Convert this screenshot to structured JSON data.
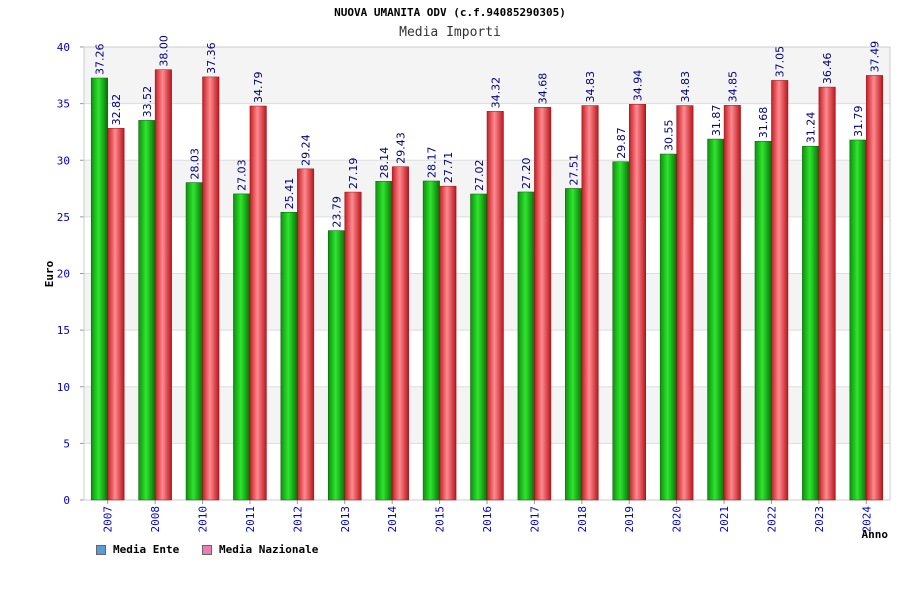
{
  "chart_data": {
    "type": "bar",
    "title": "NUOVA UMANITA ODV (c.f.94085290305)",
    "subtitle": "Media Importi",
    "xlabel": "Anno",
    "ylabel": "Euro",
    "ylim": [
      0,
      40
    ],
    "yticks": [
      0,
      5,
      10,
      15,
      20,
      25,
      30,
      35,
      40
    ],
    "categories": [
      "2007",
      "2008",
      "2010",
      "2011",
      "2012",
      "2013",
      "2014",
      "2015",
      "2016",
      "2017",
      "2018",
      "2019",
      "2020",
      "2021",
      "2022",
      "2023",
      "2024"
    ],
    "series": [
      {
        "name": "Media Ente",
        "color": "#1bb31b",
        "values": [
          37.26,
          33.52,
          28.03,
          27.03,
          25.41,
          23.79,
          28.14,
          28.17,
          27.02,
          27.2,
          27.51,
          29.87,
          30.55,
          31.87,
          31.68,
          31.24,
          31.79
        ]
      },
      {
        "name": "Media Nazionale",
        "color": "#e8343a",
        "values": [
          32.82,
          38.0,
          37.36,
          34.79,
          29.24,
          27.19,
          29.43,
          27.71,
          34.32,
          34.68,
          34.83,
          34.94,
          34.83,
          34.85,
          37.05,
          36.46,
          37.49
        ]
      }
    ],
    "value_labels": {
      "Media Ente": [
        "37.26",
        "33.52",
        "28.03",
        "27.03",
        "25.41",
        "23.79",
        "28.14",
        "28.17",
        "27.02",
        "27.20",
        "27.51",
        "29.87",
        "30.55",
        "31.87",
        "31.68",
        "31.24",
        "31.79"
      ],
      "Media Nazionale": [
        "32.82",
        "38.00",
        "37.36",
        "34.79",
        "29.24",
        "27.19",
        "29.43",
        "27.71",
        "34.32",
        "34.68",
        "34.83",
        "34.94",
        "34.83",
        "34.85",
        "37.05",
        "36.46",
        "37.49"
      ]
    },
    "grid": true,
    "legend_position": "bottom-left",
    "legend_swatch_colors": {
      "Media Ente": "#5b9bd5",
      "Media Nazionale": "#e87fb0"
    },
    "axis_label_color": "#0000cc",
    "value_label_color": "#000080"
  }
}
